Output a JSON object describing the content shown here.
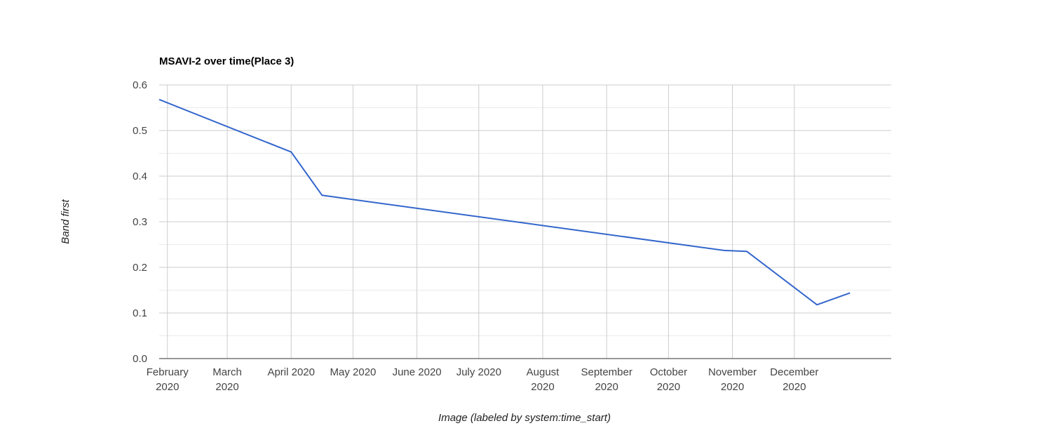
{
  "chart_data": {
    "type": "line",
    "title": "MSAVI-2 over time(Place 3)",
    "xlabel": "Image (labeled by system:time_start)",
    "ylabel": "Band first",
    "ylim": [
      0,
      0.6
    ],
    "y_ticks": [
      0,
      0.1,
      0.2,
      0.3,
      0.4,
      0.5,
      0.6
    ],
    "y_tick_labels": [
      "0.0",
      "0.1",
      "0.2",
      "0.3",
      "0.4",
      "0.5",
      "0.6"
    ],
    "xlim": [
      "2020-01-28",
      "2021-01-17"
    ],
    "x_ticks": [
      {
        "date": "2020-02-01",
        "lines": [
          "February",
          "2020"
        ]
      },
      {
        "date": "2020-03-01",
        "lines": [
          "March",
          "2020"
        ]
      },
      {
        "date": "2020-04-01",
        "lines": [
          "April 2020"
        ]
      },
      {
        "date": "2020-05-01",
        "lines": [
          "May 2020"
        ]
      },
      {
        "date": "2020-06-01",
        "lines": [
          "June 2020"
        ]
      },
      {
        "date": "2020-07-01",
        "lines": [
          "July 2020"
        ]
      },
      {
        "date": "2020-08-01",
        "lines": [
          "August",
          "2020"
        ]
      },
      {
        "date": "2020-09-01",
        "lines": [
          "September",
          "2020"
        ]
      },
      {
        "date": "2020-10-01",
        "lines": [
          "October",
          "2020"
        ]
      },
      {
        "date": "2020-11-01",
        "lines": [
          "November",
          "2020"
        ]
      },
      {
        "date": "2020-12-01",
        "lines": [
          "December",
          "2020"
        ]
      }
    ],
    "grid": true,
    "legend": "none",
    "series": [
      {
        "color": "#3366cc",
        "points": [
          {
            "x": "2020-01-28",
            "y": 0.568
          },
          {
            "x": "2020-04-01",
            "y": 0.453
          },
          {
            "x": "2020-04-16",
            "y": 0.358
          },
          {
            "x": "2020-10-28",
            "y": 0.237
          },
          {
            "x": "2020-11-08",
            "y": 0.235
          },
          {
            "x": "2020-12-12",
            "y": 0.118
          },
          {
            "x": "2020-12-28",
            "y": 0.144
          }
        ]
      }
    ]
  }
}
